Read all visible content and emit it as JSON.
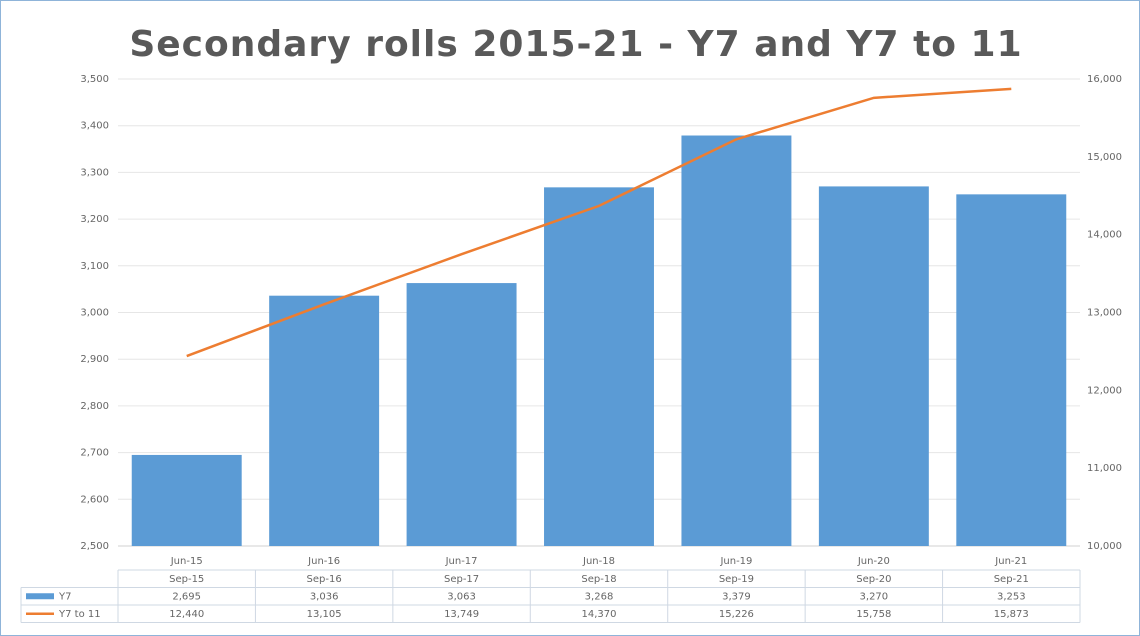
{
  "chart_data": {
    "type": "bar_line",
    "title": "Secondary rolls 2015-21 - Y7 and Y7 to 11",
    "categories": [
      "Jun-15",
      "Jun-16",
      "Jun-17",
      "Jun-18",
      "Jun-19",
      "Jun-20",
      "Jun-21"
    ],
    "table_columns": [
      "Sep-15",
      "Sep-16",
      "Sep-17",
      "Sep-18",
      "Sep-19",
      "Sep-20",
      "Sep-21"
    ],
    "series": [
      {
        "name": "Y7",
        "type": "bar",
        "color": "#5b9bd5",
        "values": [
          2695,
          3036,
          3063,
          3268,
          3379,
          3270,
          3253
        ],
        "value_labels": [
          "2,695",
          "3,036",
          "3,063",
          "3,268",
          "3,379",
          "3,270",
          "3,253"
        ]
      },
      {
        "name": "Y7 to 11",
        "type": "line",
        "axis": "y2",
        "color": "#ed7d31",
        "values": [
          12440,
          13105,
          13749,
          14370,
          15226,
          15758,
          15873
        ],
        "value_labels": [
          "12,440",
          "13,105",
          "13,749",
          "14,370",
          "15,226",
          "15,758",
          "15,873"
        ]
      }
    ],
    "ylim": [
      2500,
      3500
    ],
    "yticks": [
      {
        "value": 2500,
        "label": "2,500"
      },
      {
        "value": 2600,
        "label": "2,600"
      },
      {
        "value": 2700,
        "label": "2,700"
      },
      {
        "value": 2800,
        "label": "2,800"
      },
      {
        "value": 2900,
        "label": "2,900"
      },
      {
        "value": 3000,
        "label": "3,000"
      },
      {
        "value": 3100,
        "label": "3,100"
      },
      {
        "value": 3200,
        "label": "3,200"
      },
      {
        "value": 3300,
        "label": "3,300"
      },
      {
        "value": 3400,
        "label": "3,400"
      },
      {
        "value": 3500,
        "label": "3,500"
      }
    ],
    "y2lim": [
      10000,
      16000
    ],
    "y2ticks": [
      {
        "value": 10000,
        "label": "10,000"
      },
      {
        "value": 11000,
        "label": "11,000"
      },
      {
        "value": 12000,
        "label": "12,000"
      },
      {
        "value": 13000,
        "label": "13,000"
      },
      {
        "value": 14000,
        "label": "14,000"
      },
      {
        "value": 15000,
        "label": "15,000"
      },
      {
        "value": 16000,
        "label": "16,000"
      }
    ],
    "grid": true
  }
}
